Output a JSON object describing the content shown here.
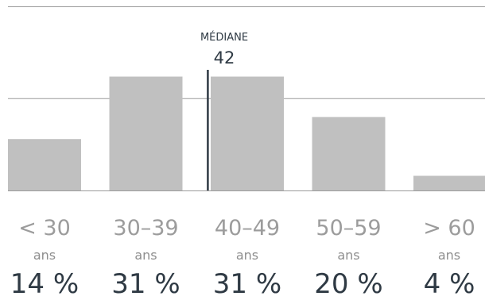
{
  "chart_data": {
    "type": "bar",
    "categories": [
      "< 30",
      "30–39",
      "40–49",
      "50–59",
      "> 60"
    ],
    "unit": "ans",
    "values": [
      14,
      31,
      31,
      20,
      4
    ],
    "value_labels": [
      "14 %",
      "31 %",
      "31 %",
      "20 %",
      "4 %"
    ],
    "ylim": [
      0,
      50
    ],
    "median": {
      "label": "MÉDIANE",
      "value": 42
    },
    "colors": {
      "bar": "#c0c0c0",
      "grid": "#9a9a9a",
      "median_line": "#2f3a44",
      "label": "#9c9c9c",
      "value_label": "#2f3a44"
    }
  }
}
